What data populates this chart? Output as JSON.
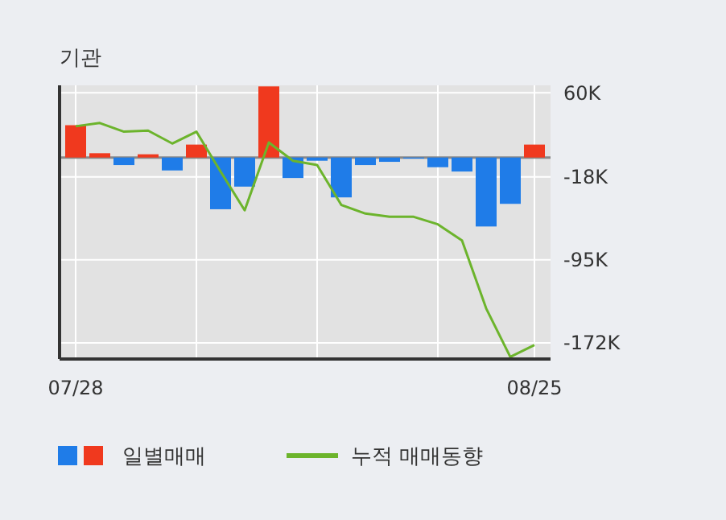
{
  "chart_data": {
    "type": "bar",
    "title": "기관",
    "categories": [
      "07/28",
      null,
      null,
      null,
      null,
      null,
      null,
      null,
      null,
      null,
      null,
      null,
      null,
      null,
      null,
      null,
      null,
      null,
      null,
      "08/25"
    ],
    "series": [
      {
        "name": "일별매매",
        "colors": [
          "#f0391e",
          "#f0391e",
          "#1f7ce8",
          "#f0391e",
          "#1f7ce8",
          "#f0391e",
          "#1f7ce8",
          "#1f7ce8",
          "#f0391e",
          "#1f7ce8",
          "#1f7ce8",
          "#1f7ce8",
          "#1f7ce8",
          "#1f7ce8",
          "#1f7ce8",
          "#1f7ce8",
          "#1f7ce8",
          "#1f7ce8",
          "#1f7ce8",
          "#f0391e"
        ],
        "values": [
          30000,
          4000,
          -7000,
          3000,
          -12000,
          12000,
          -48000,
          -27000,
          66000,
          -19000,
          -3000,
          -37000,
          -7000,
          -4000,
          -1000,
          -9000,
          -13000,
          -64000,
          -43000,
          12000
        ]
      },
      {
        "name": "누적 매매동향",
        "type": "line",
        "color": "#6cb42c",
        "values": [
          29000,
          32000,
          24000,
          25000,
          13000,
          24000,
          -13000,
          -49000,
          14000,
          -3000,
          -7000,
          -44000,
          -52000,
          -55000,
          -55000,
          -62000,
          -77000,
          -140000,
          -185000,
          -174000
        ]
      }
    ],
    "ylim": [
      -187000,
      67000
    ],
    "yticks": [
      {
        "value": 60000,
        "label": "60K"
      },
      {
        "value": -18000,
        "label": "-18K"
      },
      {
        "value": -95000,
        "label": "-95K"
      },
      {
        "value": -172000,
        "label": "-172K"
      }
    ],
    "grid": true,
    "legend": "bottom",
    "marker": "none",
    "line_style": "solid"
  }
}
